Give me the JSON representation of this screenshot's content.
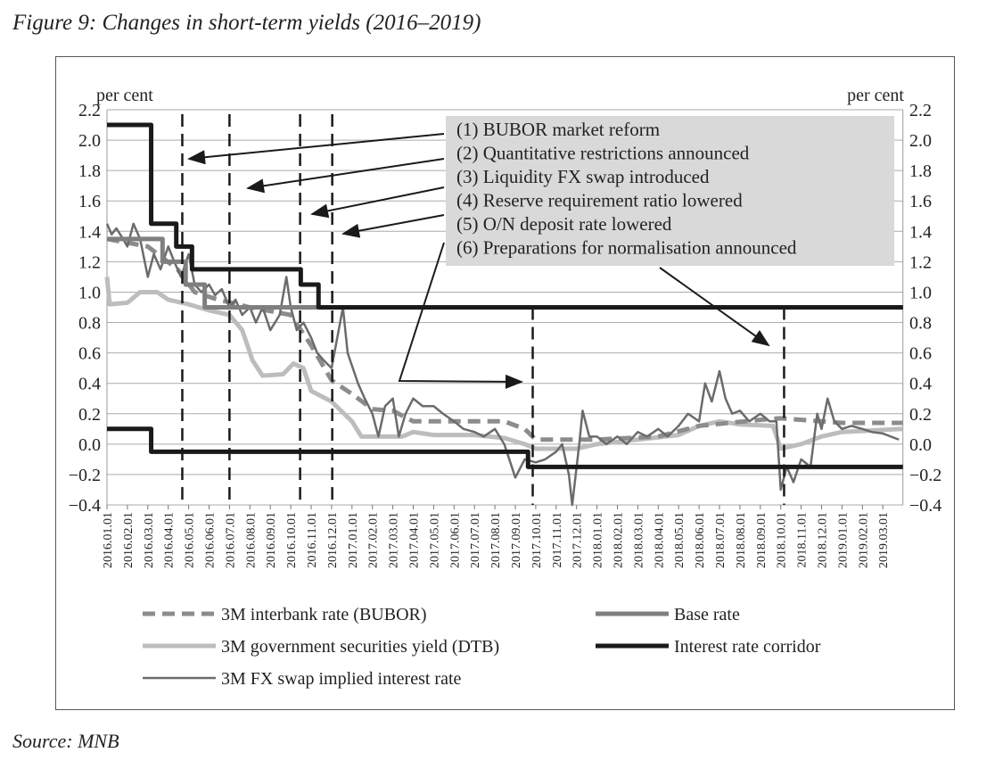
{
  "figure_title": "Figure 9: Changes in short-term yields (2016–2019)",
  "source": "Source: MNB",
  "chart_data": {
    "type": "line",
    "ylabel_left": "per cent",
    "ylabel_right": "per cent",
    "ylim": [
      -0.4,
      2.2
    ],
    "yticks": [
      "2.2",
      "2.0",
      "1.8",
      "1.6",
      "1.4",
      "1.2",
      "1.0",
      "0.8",
      "0.6",
      "0.4",
      "0.2",
      "0.0",
      "−0.2",
      "−0.4"
    ],
    "ytick_values": [
      2.2,
      2.0,
      1.8,
      1.6,
      1.4,
      1.2,
      1.0,
      0.8,
      0.6,
      0.4,
      0.2,
      0.0,
      -0.2,
      -0.4
    ],
    "grid": true,
    "xlim": [
      "2016-01-01",
      "2019-03-31"
    ],
    "xticks": [
      "2016.01.01",
      "2016.02.01",
      "2016.03.01",
      "2016.04.01",
      "2016.05.01",
      "2016.06.01",
      "2016.07.01",
      "2016.08.01",
      "2016.09.01",
      "2016.10.01",
      "2016.11.01",
      "2016.12.01",
      "2017.01.01",
      "2017.02.01",
      "2017.03.01",
      "2017.04.01",
      "2017.05.01",
      "2017.06.01",
      "2017.07.01",
      "2017.08.01",
      "2017.09.01",
      "2017.10.01",
      "2017.11.01",
      "2017.12.01",
      "2018.01.01",
      "2018.02.01",
      "2018.03.01",
      "2018.04.01",
      "2018.05.01",
      "2018.06.01",
      "2018.07.01",
      "2018.08.01",
      "2018.09.01",
      "2018.10.01",
      "2018.11.01",
      "2018.12.01",
      "2019.01.01",
      "2019.02.01",
      "2019.03.01"
    ],
    "legend_placement": "bottom",
    "series": [
      {
        "name": "3M interbank rate (BUBOR)",
        "style": "dashed",
        "color": "#8c8c8c",
        "points": [
          [
            "2016-01-01",
            1.35
          ],
          [
            "2016-03-01",
            1.3
          ],
          [
            "2016-04-15",
            1.15
          ],
          [
            "2016-05-10",
            1.0
          ],
          [
            "2016-06-15",
            0.95
          ],
          [
            "2016-08-01",
            0.9
          ],
          [
            "2016-10-01",
            0.85
          ],
          [
            "2016-11-01",
            0.65
          ],
          [
            "2016-12-01",
            0.42
          ],
          [
            "2017-01-01",
            0.33
          ],
          [
            "2017-02-01",
            0.23
          ],
          [
            "2017-03-01",
            0.22
          ],
          [
            "2017-04-01",
            0.15
          ],
          [
            "2017-08-15",
            0.15
          ],
          [
            "2017-09-15",
            0.1
          ],
          [
            "2017-10-01",
            0.03
          ],
          [
            "2018-01-01",
            0.03
          ],
          [
            "2018-04-01",
            0.05
          ],
          [
            "2018-06-01",
            0.12
          ],
          [
            "2018-09-01",
            0.16
          ],
          [
            "2018-10-01",
            0.17
          ],
          [
            "2019-01-01",
            0.14
          ],
          [
            "2019-03-31",
            0.14
          ]
        ]
      },
      {
        "name": "Base rate",
        "style": "step",
        "color": "#7f7f7f",
        "points": [
          [
            "2016-01-01",
            1.35
          ],
          [
            "2016-03-23",
            1.2
          ],
          [
            "2016-04-27",
            1.05
          ],
          [
            "2016-05-25",
            0.9
          ],
          [
            "2019-03-31",
            0.9
          ]
        ]
      },
      {
        "name": "3M government securities yield (DTB)",
        "style": "solid",
        "color": "#bdbdbd",
        "points": [
          [
            "2016-01-01",
            1.1
          ],
          [
            "2016-01-05",
            0.92
          ],
          [
            "2016-02-01",
            0.93
          ],
          [
            "2016-02-20",
            1.0
          ],
          [
            "2016-03-15",
            1.0
          ],
          [
            "2016-04-01",
            0.95
          ],
          [
            "2016-05-01",
            0.92
          ],
          [
            "2016-06-01",
            0.88
          ],
          [
            "2016-07-01",
            0.85
          ],
          [
            "2016-07-20",
            0.75
          ],
          [
            "2016-08-05",
            0.55
          ],
          [
            "2016-08-20",
            0.45
          ],
          [
            "2016-09-20",
            0.46
          ],
          [
            "2016-10-05",
            0.53
          ],
          [
            "2016-10-20",
            0.5
          ],
          [
            "2016-11-01",
            0.35
          ],
          [
            "2016-12-01",
            0.28
          ],
          [
            "2017-01-01",
            0.15
          ],
          [
            "2017-01-15",
            0.05
          ],
          [
            "2017-03-15",
            0.05
          ],
          [
            "2017-04-01",
            0.08
          ],
          [
            "2017-05-01",
            0.06
          ],
          [
            "2017-07-01",
            0.06
          ],
          [
            "2017-08-15",
            0.04
          ],
          [
            "2017-09-15",
            0.0
          ],
          [
            "2017-10-01",
            -0.03
          ],
          [
            "2017-12-01",
            -0.03
          ],
          [
            "2018-01-01",
            0.0
          ],
          [
            "2018-03-01",
            0.03
          ],
          [
            "2018-05-01",
            0.06
          ],
          [
            "2018-06-01",
            0.12
          ],
          [
            "2018-07-01",
            0.15
          ],
          [
            "2018-08-01",
            0.13
          ],
          [
            "2018-09-20",
            0.12
          ],
          [
            "2018-10-01",
            -0.03
          ],
          [
            "2018-11-01",
            0.0
          ],
          [
            "2018-12-01",
            0.05
          ],
          [
            "2019-01-01",
            0.08
          ],
          [
            "2019-03-31",
            0.1
          ]
        ]
      },
      {
        "name": "Interest rate corridor",
        "style": "step",
        "color": "#1a1a1a",
        "points": [
          [
            "2016-01-01",
            2.1
          ],
          [
            "2016-03-06",
            1.45
          ],
          [
            "2016-04-13",
            1.3
          ],
          [
            "2016-05-06",
            1.15
          ],
          [
            "2016-10-16",
            1.05
          ],
          [
            "2016-11-12",
            0.9
          ],
          [
            "2019-03-31",
            0.9
          ]
        ]
      },
      {
        "name": "",
        "style": "step",
        "color": "#1a1a1a",
        "points": [
          [
            "2016-01-01",
            0.1
          ],
          [
            "2016-03-06",
            -0.05
          ],
          [
            "2017-09-20",
            -0.15
          ],
          [
            "2019-03-31",
            -0.15
          ]
        ]
      },
      {
        "name": "3M FX swap implied interest rate",
        "style": "thin",
        "color": "#6b6b6b",
        "points": [
          [
            "2016-01-01",
            1.45
          ],
          [
            "2016-01-08",
            1.38
          ],
          [
            "2016-01-15",
            1.42
          ],
          [
            "2016-01-25",
            1.35
          ],
          [
            "2016-02-01",
            1.3
          ],
          [
            "2016-02-10",
            1.45
          ],
          [
            "2016-02-20",
            1.35
          ],
          [
            "2016-03-01",
            1.1
          ],
          [
            "2016-03-10",
            1.25
          ],
          [
            "2016-03-20",
            1.15
          ],
          [
            "2016-04-01",
            1.3
          ],
          [
            "2016-04-10",
            1.2
          ],
          [
            "2016-04-20",
            1.1
          ],
          [
            "2016-05-01",
            1.25
          ],
          [
            "2016-05-10",
            1.05
          ],
          [
            "2016-05-20",
            1.0
          ],
          [
            "2016-06-01",
            1.05
          ],
          [
            "2016-06-10",
            0.98
          ],
          [
            "2016-06-20",
            1.02
          ],
          [
            "2016-07-01",
            0.9
          ],
          [
            "2016-07-10",
            0.95
          ],
          [
            "2016-07-20",
            0.85
          ],
          [
            "2016-08-01",
            0.9
          ],
          [
            "2016-08-10",
            0.8
          ],
          [
            "2016-08-20",
            0.9
          ],
          [
            "2016-09-01",
            0.75
          ],
          [
            "2016-09-15",
            0.85
          ],
          [
            "2016-09-25",
            1.1
          ],
          [
            "2016-10-01",
            0.9
          ],
          [
            "2016-10-10",
            0.75
          ],
          [
            "2016-10-20",
            0.8
          ],
          [
            "2016-11-01",
            0.7
          ],
          [
            "2016-11-10",
            0.6
          ],
          [
            "2016-11-20",
            0.55
          ],
          [
            "2016-12-01",
            0.5
          ],
          [
            "2016-12-18",
            0.9
          ],
          [
            "2016-12-25",
            0.6
          ],
          [
            "2017-01-10",
            0.4
          ],
          [
            "2017-01-20",
            0.3
          ],
          [
            "2017-02-01",
            0.2
          ],
          [
            "2017-02-10",
            0.05
          ],
          [
            "2017-02-20",
            0.25
          ],
          [
            "2017-03-01",
            0.3
          ],
          [
            "2017-03-10",
            0.05
          ],
          [
            "2017-03-20",
            0.2
          ],
          [
            "2017-04-01",
            0.3
          ],
          [
            "2017-04-15",
            0.25
          ],
          [
            "2017-05-01",
            0.25
          ],
          [
            "2017-05-15",
            0.2
          ],
          [
            "2017-06-01",
            0.15
          ],
          [
            "2017-06-15",
            0.1
          ],
          [
            "2017-07-01",
            0.08
          ],
          [
            "2017-07-15",
            0.05
          ],
          [
            "2017-08-01",
            0.1
          ],
          [
            "2017-08-15",
            0.0
          ],
          [
            "2017-09-01",
            -0.22
          ],
          [
            "2017-09-15",
            -0.1
          ],
          [
            "2017-10-01",
            -0.12
          ],
          [
            "2017-10-15",
            -0.1
          ],
          [
            "2017-11-01",
            -0.05
          ],
          [
            "2017-11-10",
            0.0
          ],
          [
            "2017-11-20",
            -0.2
          ],
          [
            "2017-11-25",
            -0.4
          ],
          [
            "2017-12-05",
            0.0
          ],
          [
            "2017-12-10",
            0.22
          ],
          [
            "2017-12-20",
            0.05
          ],
          [
            "2018-01-01",
            0.05
          ],
          [
            "2018-01-15",
            0.0
          ],
          [
            "2018-02-01",
            0.05
          ],
          [
            "2018-02-15",
            0.0
          ],
          [
            "2018-03-01",
            0.08
          ],
          [
            "2018-03-15",
            0.05
          ],
          [
            "2018-04-01",
            0.1
          ],
          [
            "2018-04-15",
            0.05
          ],
          [
            "2018-05-01",
            0.12
          ],
          [
            "2018-05-15",
            0.2
          ],
          [
            "2018-06-01",
            0.15
          ],
          [
            "2018-06-10",
            0.4
          ],
          [
            "2018-06-20",
            0.28
          ],
          [
            "2018-07-01",
            0.48
          ],
          [
            "2018-07-10",
            0.3
          ],
          [
            "2018-07-20",
            0.2
          ],
          [
            "2018-08-01",
            0.22
          ],
          [
            "2018-08-15",
            0.15
          ],
          [
            "2018-09-01",
            0.2
          ],
          [
            "2018-09-15",
            0.15
          ],
          [
            "2018-09-25",
            0.15
          ],
          [
            "2018-10-01",
            -0.3
          ],
          [
            "2018-10-10",
            -0.15
          ],
          [
            "2018-10-20",
            -0.25
          ],
          [
            "2018-11-01",
            -0.1
          ],
          [
            "2018-11-15",
            -0.15
          ],
          [
            "2018-11-25",
            0.2
          ],
          [
            "2018-12-01",
            0.1
          ],
          [
            "2018-12-10",
            0.3
          ],
          [
            "2018-12-20",
            0.15
          ],
          [
            "2019-01-01",
            0.1
          ],
          [
            "2019-01-15",
            0.12
          ],
          [
            "2019-02-01",
            0.1
          ],
          [
            "2019-02-15",
            0.08
          ],
          [
            "2019-03-01",
            0.07
          ],
          [
            "2019-03-25",
            0.03
          ]
        ]
      }
    ],
    "event_markers": [
      "2016-04-22",
      "2016-07-01",
      "2016-10-15",
      "2016-12-02",
      "2017-09-27",
      "2018-10-06"
    ],
    "annotations": [
      "(1) BUBOR market reform",
      "(2) Quantitative restrictions announced",
      "(3) Liquidity FX swap introduced",
      "(4) Reserve requirement ratio lowered",
      "(5) O/N deposit rate lowered",
      "(6) Preparations for normalisation announced"
    ],
    "legend": [
      "3M interbank rate (BUBOR)",
      "Base rate",
      "3M government securities yield (DTB)",
      "Interest rate corridor",
      "3M FX swap implied interest rate"
    ]
  }
}
